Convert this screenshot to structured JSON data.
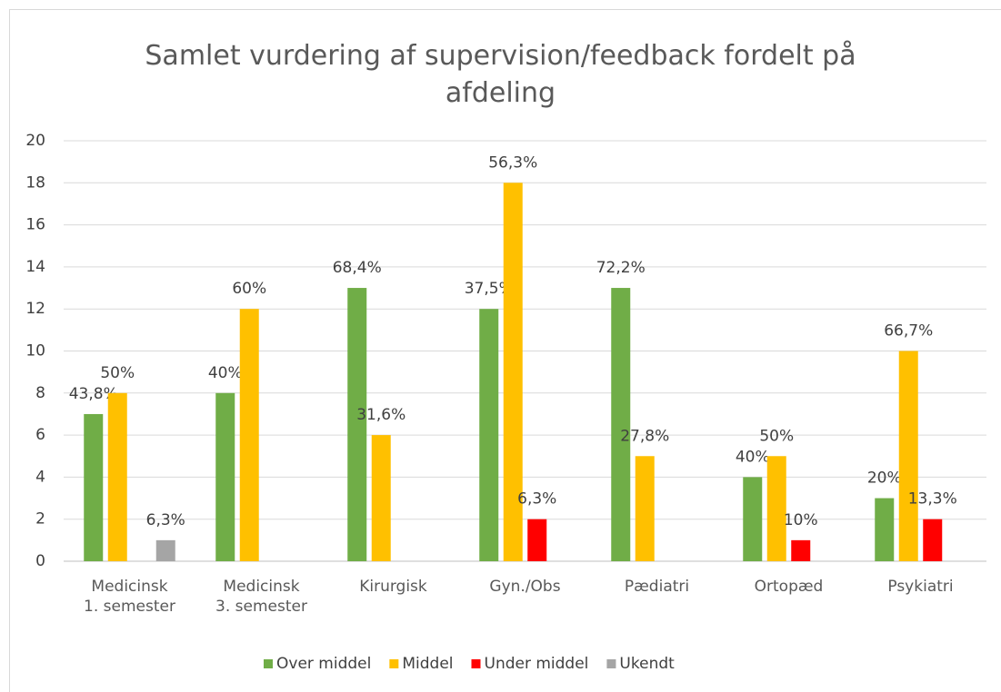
{
  "chart_data": {
    "type": "bar",
    "title": "Samlet vurdering af supervision/feedback fordelt på\nafdeling",
    "categories": [
      "Medicinsk\n1. semester",
      "Medicinsk\n3. semester",
      "Kirurgisk",
      "Gyn./Obs",
      "Pædiatri",
      "Ortopæd",
      "Psykiatri"
    ],
    "series": [
      {
        "name": "Over middel",
        "color": "#70ad47",
        "values": [
          7,
          8,
          13,
          12,
          13,
          4,
          3
        ],
        "data_labels": [
          "43,8%",
          "40%",
          "68,4%",
          "37,5%",
          "72,2%",
          "40%",
          "20%"
        ]
      },
      {
        "name": "Middel",
        "color": "#ffc000",
        "values": [
          8,
          12,
          6,
          18,
          5,
          5,
          10
        ],
        "data_labels": [
          "50%",
          "60%",
          "31,6%",
          "56,3%",
          "27,8%",
          "50%",
          "66,7%"
        ]
      },
      {
        "name": "Under middel",
        "color": "#ff0000",
        "values": [
          0,
          0,
          0,
          2,
          0,
          1,
          2
        ],
        "data_labels": [
          null,
          null,
          null,
          "6,3%",
          null,
          "10%",
          "13,3%"
        ]
      },
      {
        "name": "Ukendt",
        "color": "#a5a5a5",
        "values": [
          1,
          0,
          0,
          0,
          0,
          0,
          0
        ],
        "data_labels": [
          "6,3%",
          null,
          null,
          null,
          null,
          null,
          null
        ]
      }
    ],
    "ylim": [
      0,
      20
    ],
    "yticks": [
      0,
      2,
      4,
      6,
      8,
      10,
      12,
      14,
      16,
      18,
      20
    ],
    "grid": true,
    "legend": "bottom"
  }
}
